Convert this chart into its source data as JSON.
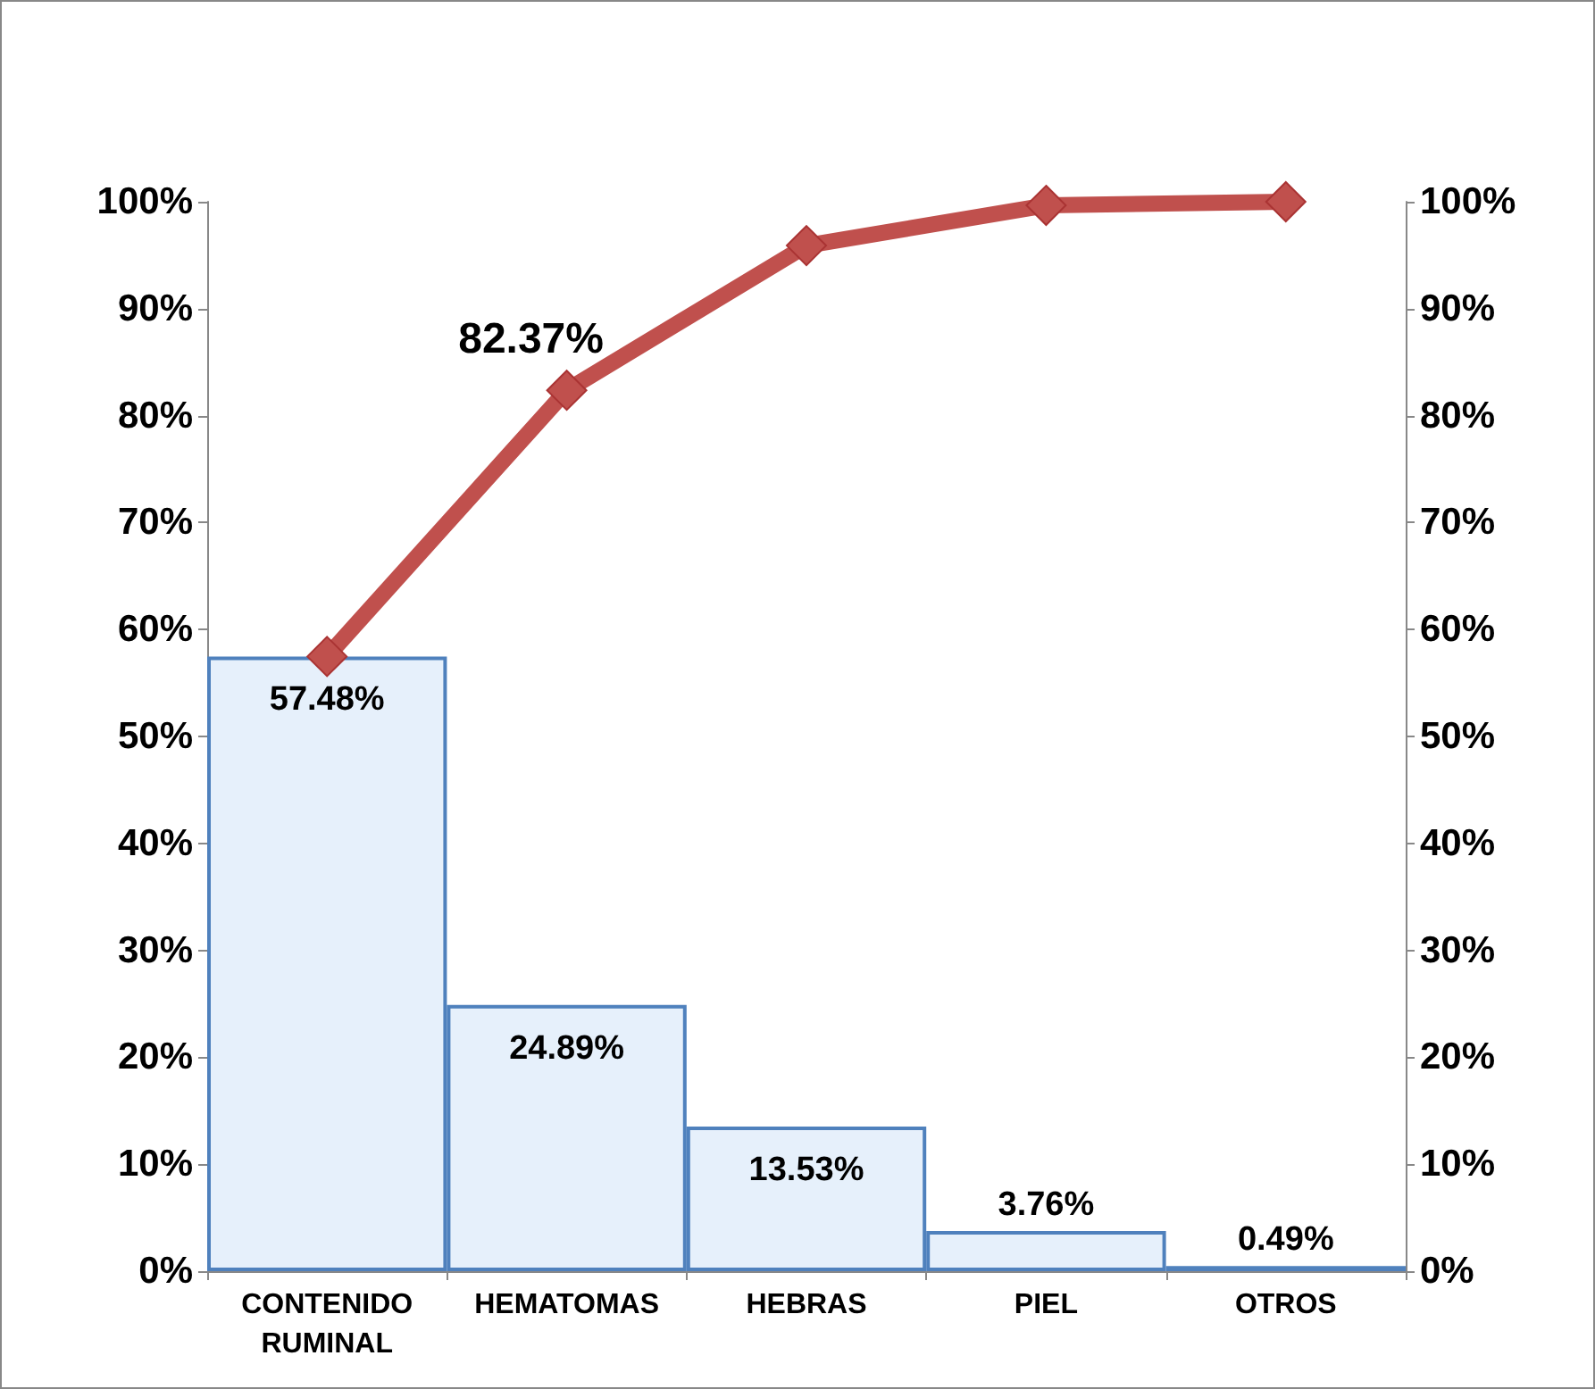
{
  "chart_data": {
    "type": "bar",
    "categories": [
      "CONTENIDO\nRUMINAL",
      "HEMATOMAS",
      "HEBRAS",
      "PIEL",
      "OTROS"
    ],
    "series": [
      {
        "color": "#e6f0fb",
        "values": [
          57.48,
          24.89,
          13.53,
          3.76,
          0.49
        ],
        "value_labels": [
          "57.48%",
          "24.89%",
          "13.53%",
          "3.76%",
          "0.49%"
        ]
      },
      {
        "type": "line",
        "axis": "y2",
        "color": "#c0504d",
        "marker": "diamond",
        "values": [
          57.48,
          82.37,
          95.9,
          99.66,
          100
        ],
        "value_labels": [
          null,
          "82.37%",
          null,
          null,
          null
        ]
      }
    ],
    "ylim": [
      0,
      100
    ],
    "yticks": [
      {
        "value": 0,
        "label": "0%"
      },
      {
        "value": 10,
        "label": "10%"
      },
      {
        "value": 20,
        "label": "20%"
      },
      {
        "value": 30,
        "label": "30%"
      },
      {
        "value": 40,
        "label": "40%"
      },
      {
        "value": 50,
        "label": "50%"
      },
      {
        "value": 60,
        "label": "60%"
      },
      {
        "value": 70,
        "label": "70%"
      },
      {
        "value": 80,
        "label": "80%"
      },
      {
        "value": 90,
        "label": "90%"
      },
      {
        "value": 100,
        "label": "100%"
      }
    ],
    "y2lim": [
      0,
      100
    ],
    "y2ticks": [
      {
        "value": 0,
        "label": "0%"
      },
      {
        "value": 10,
        "label": "10%"
      },
      {
        "value": 20,
        "label": "20%"
      },
      {
        "value": 30,
        "label": "30%"
      },
      {
        "value": 40,
        "label": "40%"
      },
      {
        "value": 50,
        "label": "50%"
      },
      {
        "value": 60,
        "label": "60%"
      },
      {
        "value": 70,
        "label": "70%"
      },
      {
        "value": 80,
        "label": "80%"
      },
      {
        "value": 90,
        "label": "90%"
      },
      {
        "value": 100,
        "label": "100%"
      }
    ],
    "grid": false
  }
}
